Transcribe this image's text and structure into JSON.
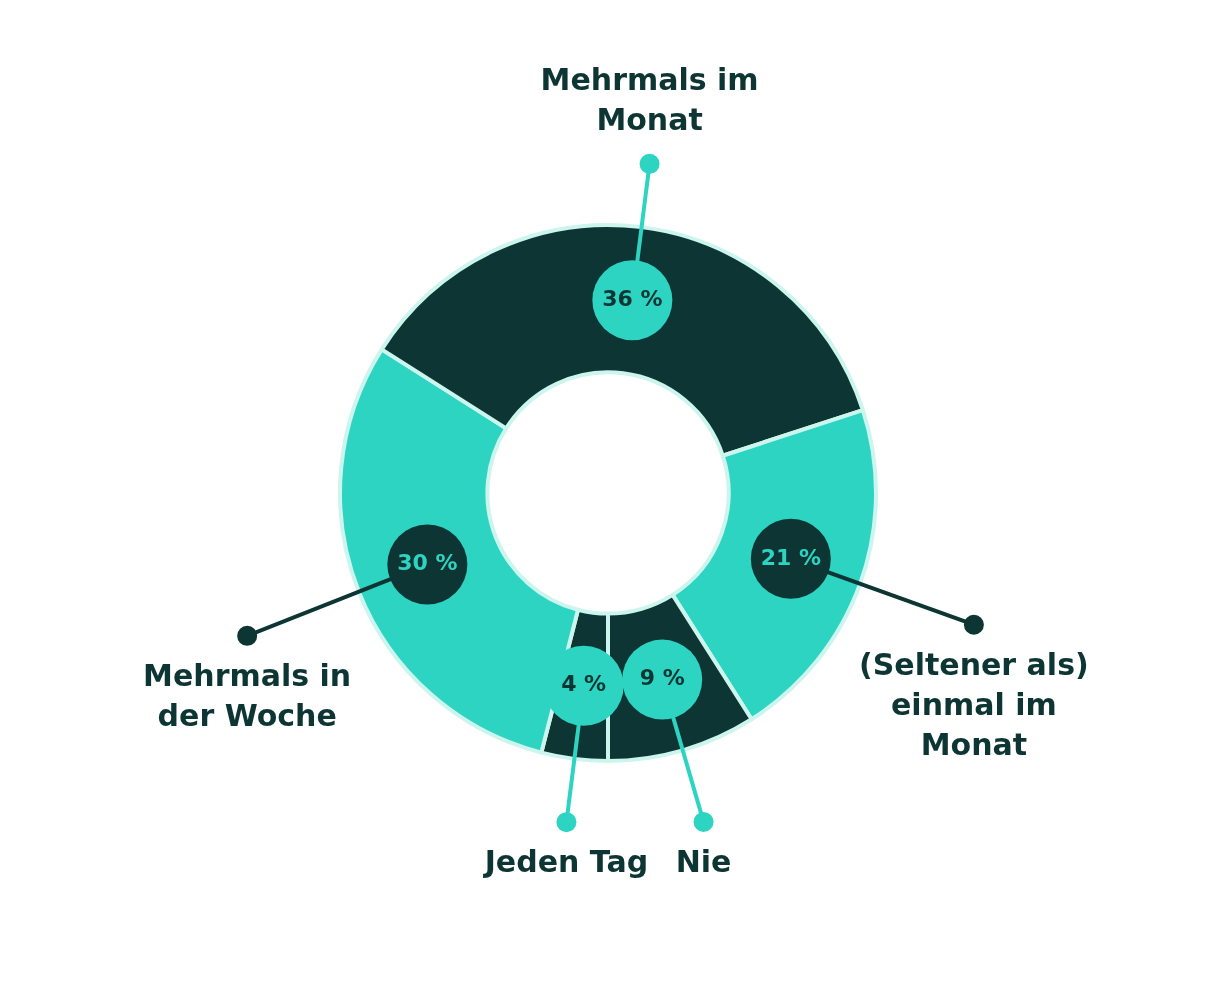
{
  "chart_data": {
    "type": "donut",
    "categories": [
      "Jeden Tag",
      "Mehrmals in der Woche",
      "Mehrmals im Monat",
      "(Seltener als) einmal im Monat",
      "Nie"
    ],
    "values": [
      4,
      30,
      36,
      21,
      9
    ],
    "colors": [
      "#0d3533",
      "#2dd4c2",
      "#0d3533",
      "#2dd4c2",
      "#0d3533"
    ],
    "value_labels": [
      "4 %",
      "30 %",
      "36 %",
      "21 %",
      "9 %"
    ],
    "legend": false
  }
}
